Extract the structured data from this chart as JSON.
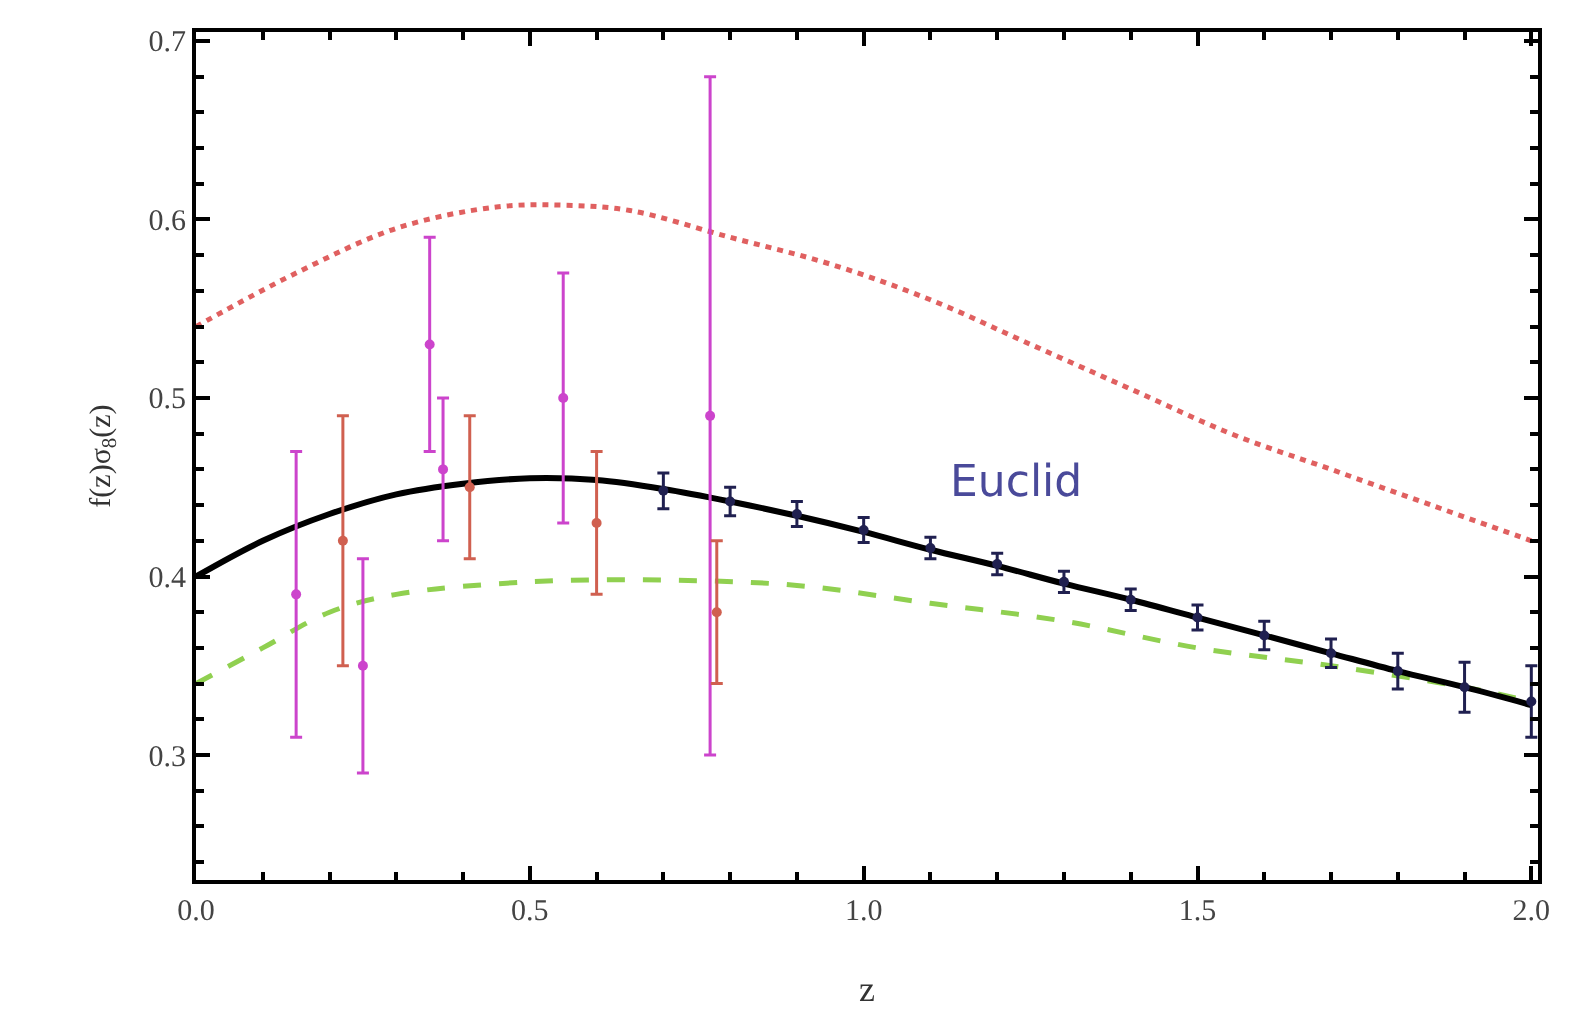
{
  "chart_data": {
    "type": "line",
    "xlabel": "z",
    "ylabel": "f(z)σ$_{8}$(z)",
    "xlim": [
      0,
      2.01
    ],
    "ylim": [
      0.23,
      0.705
    ],
    "xticks": [
      {
        "value": 0,
        "label": "0.0"
      },
      {
        "value": 0.5,
        "label": "0.5"
      },
      {
        "value": 1,
        "label": "1.0"
      },
      {
        "value": 1.5,
        "label": "1.5"
      },
      {
        "value": 2,
        "label": "2.0"
      }
    ],
    "yticks": [
      0.3,
      0.4,
      0.5,
      0.6,
      0.7
    ],
    "grid": false,
    "series": [
      {
        "line_style": "dotted",
        "color": "#e06060",
        "x": [
          0,
          0.15,
          0.3,
          0.45,
          0.55,
          0.65,
          0.8,
          0.95,
          1.1,
          1.25,
          1.4,
          1.55,
          1.7,
          1.85,
          2.0
        ],
        "values": [
          0.54,
          0.57,
          0.595,
          0.607,
          0.608,
          0.605,
          0.59,
          0.575,
          0.555,
          0.53,
          0.505,
          0.48,
          0.46,
          0.44,
          0.42
        ]
      },
      {
        "line_style": "dashed",
        "color": "#90d050",
        "x": [
          0,
          0.1,
          0.2,
          0.3,
          0.5,
          0.7,
          0.9,
          1.1,
          1.3,
          1.5,
          1.7,
          1.9,
          2.0
        ],
        "values": [
          0.34,
          0.36,
          0.38,
          0.39,
          0.397,
          0.398,
          0.395,
          0.385,
          0.375,
          0.36,
          0.35,
          0.338,
          0.33
        ]
      },
      {
        "line_style": "solid",
        "color": "#000000",
        "x": [
          0,
          0.1,
          0.2,
          0.3,
          0.4,
          0.5,
          0.6,
          0.7,
          0.8,
          0.9,
          1.0,
          1.1,
          1.2,
          1.3,
          1.4,
          1.5,
          1.6,
          1.7,
          1.8,
          1.9,
          2.0
        ],
        "values": [
          0.4,
          0.42,
          0.435,
          0.446,
          0.452,
          0.455,
          0.454,
          0.449,
          0.442,
          0.434,
          0.425,
          0.415,
          0.406,
          0.396,
          0.387,
          0.377,
          0.367,
          0.357,
          0.347,
          0.338,
          0.328
        ]
      },
      {
        "type": "scatter",
        "marker": "circle",
        "color": "#cc44cc",
        "x": [
          0.15,
          0.25,
          0.35,
          0.37,
          0.55,
          0.77
        ],
        "values": [
          0.39,
          0.35,
          0.53,
          0.46,
          0.5,
          0.49
        ],
        "errors": [
          [
            0.31,
            0.47
          ],
          [
            0.29,
            0.41
          ],
          [
            0.47,
            0.59
          ],
          [
            0.42,
            0.5
          ],
          [
            0.43,
            0.57
          ],
          [
            0.3,
            0.68
          ]
        ]
      },
      {
        "type": "scatter",
        "marker": "circle",
        "color": "#d06050",
        "x": [
          0.22,
          0.41,
          0.6,
          0.78
        ],
        "values": [
          0.42,
          0.45,
          0.43,
          0.38
        ],
        "errors": [
          [
            0.35,
            0.49
          ],
          [
            0.41,
            0.49
          ],
          [
            0.39,
            0.47
          ],
          [
            0.34,
            0.42
          ]
        ]
      },
      {
        "type": "scatter",
        "marker": "circle",
        "name": "Euclid",
        "color": "#202050",
        "x": [
          0.7,
          0.8,
          0.9,
          1.0,
          1.1,
          1.2,
          1.3,
          1.4,
          1.5,
          1.6,
          1.7,
          1.8,
          1.9,
          2.0
        ],
        "values": [
          0.448,
          0.442,
          0.435,
          0.426,
          0.416,
          0.407,
          0.397,
          0.387,
          0.377,
          0.367,
          0.357,
          0.347,
          0.338,
          0.33
        ],
        "errors": [
          0.01,
          0.008,
          0.007,
          0.007,
          0.006,
          0.006,
          0.006,
          0.006,
          0.007,
          0.008,
          0.008,
          0.01,
          0.014,
          0.02
        ]
      }
    ]
  }
}
